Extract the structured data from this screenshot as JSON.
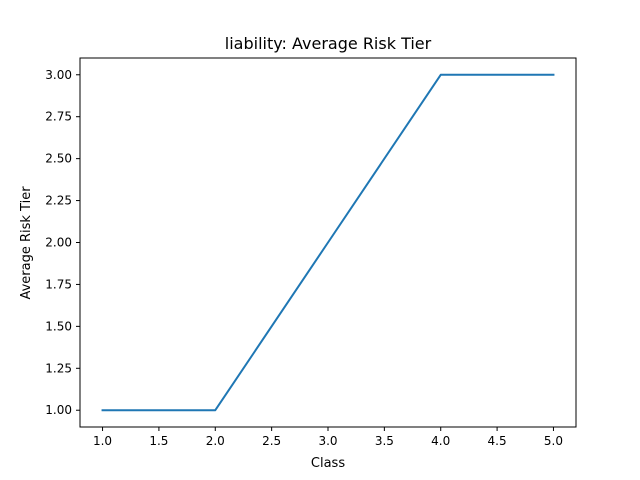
{
  "chart_data": {
    "type": "line",
    "title": "liability: Average Risk Tier",
    "xlabel": "Class",
    "ylabel": "Average Risk Tier",
    "x": [
      1.0,
      2.0,
      3.0,
      4.0,
      5.0
    ],
    "series": [
      {
        "values": [
          1.0,
          1.0,
          2.0,
          3.0,
          3.0
        ],
        "color": "#1f77b4"
      }
    ],
    "xlim": [
      0.8,
      5.2
    ],
    "ylim": [
      0.9,
      3.1
    ],
    "xticks": [
      1.0,
      1.5,
      2.0,
      2.5,
      3.0,
      3.5,
      4.0,
      4.5,
      5.0
    ],
    "xtick_labels": [
      "1.0",
      "1.5",
      "2.0",
      "2.5",
      "3.0",
      "3.5",
      "4.0",
      "4.5",
      "5.0"
    ],
    "yticks": [
      1.0,
      1.25,
      1.5,
      1.75,
      2.0,
      2.25,
      2.5,
      2.75,
      3.0
    ],
    "ytick_labels": [
      "1.00",
      "1.25",
      "1.50",
      "1.75",
      "2.00",
      "2.25",
      "2.50",
      "2.75",
      "3.00"
    ],
    "grid": false,
    "legend": "none"
  }
}
